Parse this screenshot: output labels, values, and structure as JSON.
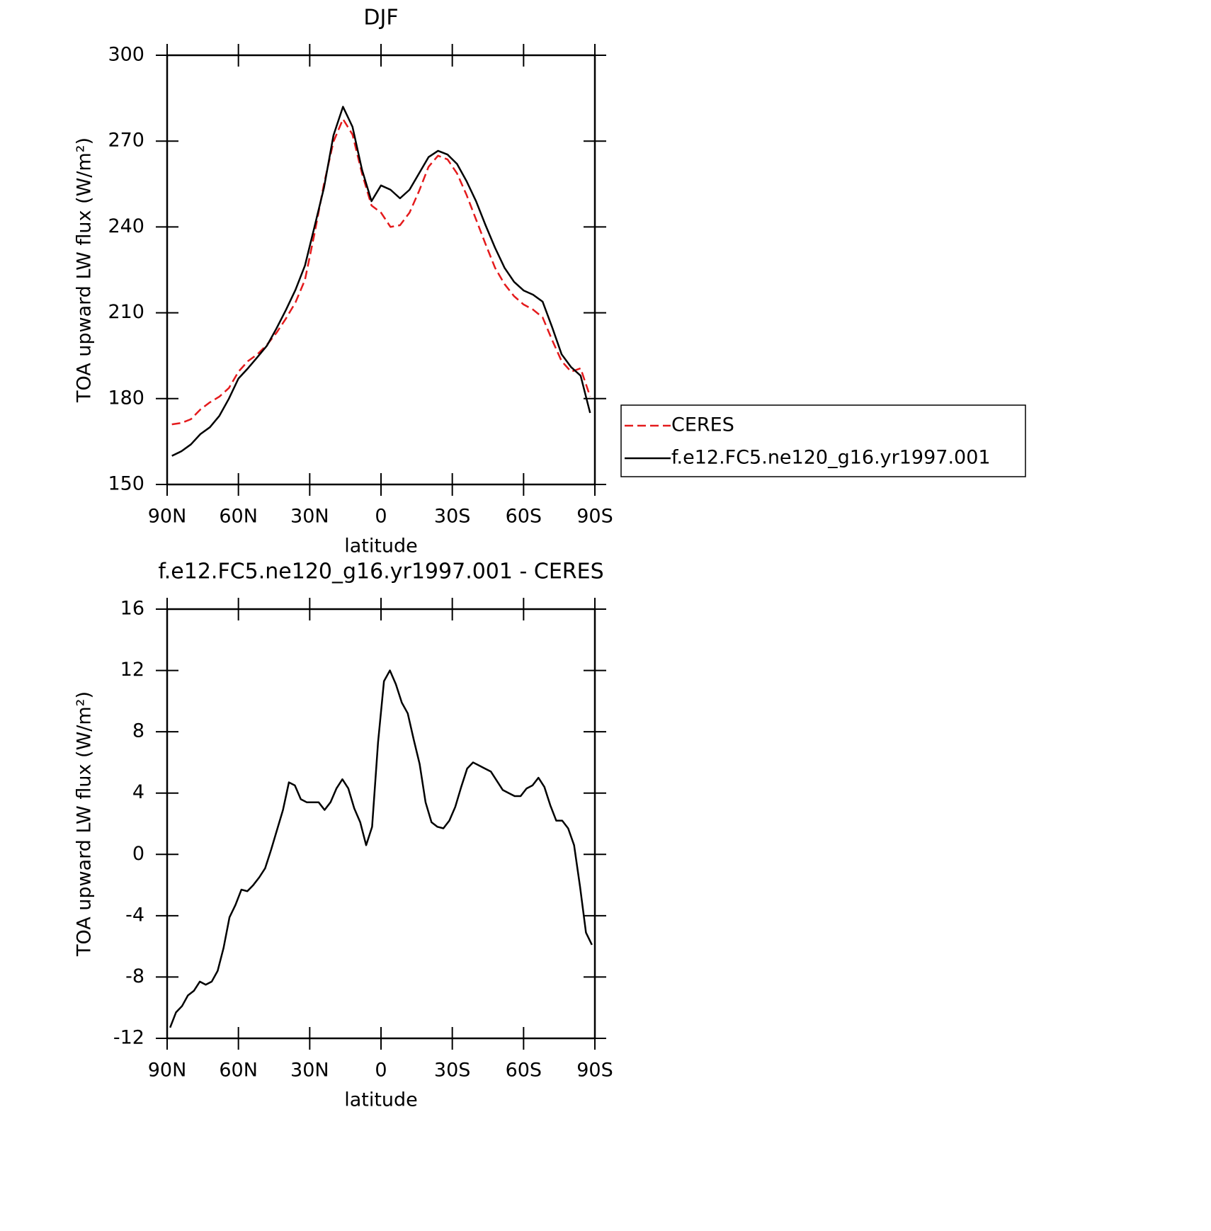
{
  "chart_data": [
    {
      "type": "line",
      "title": "DJF",
      "xlabel": "latitude",
      "ylabel": "TOA upward LW flux (W/m²)",
      "x": [
        88,
        84,
        80,
        76,
        72,
        68,
        64,
        60,
        56,
        52,
        48,
        44,
        40,
        36,
        32,
        28,
        24,
        20,
        16,
        12,
        8,
        4,
        0,
        -4,
        -8,
        -12,
        -16,
        -20,
        -24,
        -28,
        -32,
        -36,
        -40,
        -44,
        -48,
        -52,
        -56,
        -60,
        -64,
        -68,
        -72,
        -76,
        -80,
        -84,
        -88
      ],
      "series": [
        {
          "name": "CERES",
          "color": "#e41a1c",
          "linestyle": "dashed",
          "values": [
            171,
            171.5,
            172.8,
            176.2,
            178.7,
            180.7,
            183.7,
            189.4,
            193.1,
            195.5,
            198.8,
            203,
            208,
            213.6,
            221.5,
            237.6,
            255,
            269.8,
            277.7,
            272.3,
            258.7,
            247.5,
            245,
            240,
            240.6,
            245,
            252.5,
            261,
            264.9,
            263.6,
            258.7,
            251.2,
            242.6,
            234,
            225.7,
            220,
            215.8,
            212.9,
            211.1,
            208.4,
            200.5,
            193.1,
            189.4,
            190.6,
            180.7
          ]
        },
        {
          "name": "f.e12.FC5.ne120_g16.yr1997.001",
          "color": "#000000",
          "linestyle": "solid",
          "values": [
            160,
            161.6,
            164,
            167.6,
            170,
            174,
            180,
            187,
            190.6,
            194.5,
            198.5,
            204.5,
            211,
            218,
            226.5,
            240,
            253.7,
            272,
            282,
            275,
            260,
            249,
            254.5,
            253,
            250,
            253,
            258.7,
            264.4,
            266.6,
            265.3,
            262,
            256,
            249,
            240.6,
            232.7,
            225.7,
            220.8,
            217.8,
            216.3,
            213.9,
            205,
            195.5,
            191,
            188,
            175
          ]
        }
      ],
      "xlim": [
        90,
        -90
      ],
      "xticks": [
        {
          "value": 90,
          "label": "90N"
        },
        {
          "value": 60,
          "label": "60N"
        },
        {
          "value": 30,
          "label": "30N"
        },
        0,
        {
          "value": -30,
          "label": "30S"
        },
        {
          "value": -60,
          "label": "60S"
        },
        {
          "value": -90,
          "label": "90S"
        }
      ],
      "ylim": [
        150,
        300
      ],
      "yticks": [
        150,
        180,
        210,
        240,
        270,
        300
      ],
      "legend": "right"
    },
    {
      "type": "line",
      "title": "f.e12.FC5.ne120_g16.yr1997.001 - CERES",
      "xlabel": "latitude",
      "ylabel": "TOA upward LW flux (W/m²)",
      "x": [
        88.75,
        86.25,
        83.75,
        81.25,
        78.75,
        76.25,
        73.75,
        71.25,
        68.75,
        66.25,
        63.75,
        61.25,
        58.75,
        56.25,
        53.75,
        51.25,
        48.75,
        46.25,
        43.75,
        41.25,
        38.75,
        36.25,
        33.75,
        31.25,
        28.75,
        26.25,
        23.75,
        21.25,
        18.75,
        16.25,
        13.75,
        11.25,
        8.75,
        6.25,
        3.75,
        1.25,
        -1.25,
        -3.75,
        -6.25,
        -8.75,
        -11.25,
        -13.75,
        -16.25,
        -18.75,
        -21.25,
        -23.75,
        -26.25,
        -28.75,
        -31.25,
        -33.75,
        -36.25,
        -38.75,
        -41.25,
        -43.75,
        -46.25,
        -48.75,
        -51.25,
        -53.75,
        -56.25,
        -58.75,
        -61.25,
        -63.75,
        -66.25,
        -68.75,
        -71.25,
        -73.75,
        -76.25,
        -78.75,
        -81.25,
        -83.75,
        -86.25,
        -88.75
      ],
      "values": [
        -11.3,
        -10.3,
        -9.9,
        -9.2,
        -8.9,
        -8.3,
        -8.5,
        -8.3,
        -7.6,
        -6.1,
        -4.1,
        -3.3,
        -2.3,
        -2.4,
        -2.0,
        -1.5,
        -0.9,
        0.3,
        1.6,
        2.9,
        4.7,
        4.5,
        3.6,
        3.4,
        3.4,
        3.4,
        2.9,
        3.4,
        4.3,
        4.9,
        4.3,
        3.0,
        2.1,
        0.6,
        1.8,
        7.3,
        11.3,
        12.0,
        11.1,
        9.9,
        9.2,
        7.5,
        5.9,
        3.4,
        2.1,
        1.8,
        1.7,
        2.2,
        3.1,
        4.4,
        5.6,
        6.0,
        5.8,
        5.6,
        5.4,
        4.8,
        4.2,
        4.0,
        3.8,
        3.8,
        4.3,
        4.5,
        5.0,
        4.4,
        3.2,
        2.2,
        2.2,
        1.7,
        0.6,
        -2.1,
        -5.1,
        -5.9
      ],
      "color": "#000000",
      "xlim": [
        90,
        -90
      ],
      "xticks": [
        {
          "value": 90,
          "label": "90N"
        },
        {
          "value": 60,
          "label": "60N"
        },
        {
          "value": 30,
          "label": "30N"
        },
        0,
        {
          "value": -30,
          "label": "30S"
        },
        {
          "value": -60,
          "label": "60S"
        },
        {
          "value": -90,
          "label": "90S"
        }
      ],
      "ylim": [
        -12,
        16
      ],
      "yticks": [
        -12,
        -8,
        -4,
        0,
        4,
        8,
        12,
        16
      ]
    }
  ]
}
